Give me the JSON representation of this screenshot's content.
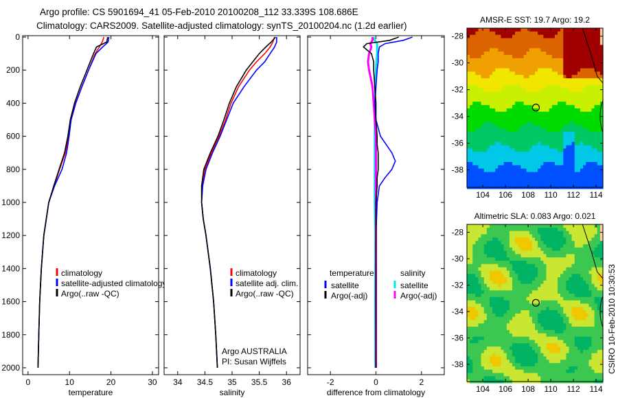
{
  "title_line1": "Argo profile: CS 5901694_41 05-Feb-2010 20100208_112 33.339S 108.686E",
  "title_line2": "Climatology: CARS2009. Satellite-adjusted climatology: synTS_20100204.nc (1.2d earlier)",
  "footer": "CSIRO 10-Feb-2010 10:30:53",
  "colors": {
    "climatology": "#ff0000",
    "satellite": "#0000ff",
    "argo": "#000000",
    "sal_satellite": "#00e5ee",
    "sal_argo": "#ff00ff"
  },
  "chart_data": [
    {
      "type": "line",
      "xlabel": "temperature",
      "ylabel": "",
      "xlim": [
        -1.3,
        31.5
      ],
      "ylim": [
        2050,
        0
      ],
      "xticks": [
        "0",
        "10",
        "20",
        "30"
      ],
      "yticks": [
        "0",
        "200",
        "400",
        "600",
        "800",
        "1000",
        "1200",
        "1400",
        "1600",
        "1800",
        "2000"
      ],
      "depth": [
        0,
        30,
        60,
        100,
        150,
        200,
        300,
        400,
        500,
        600,
        700,
        800,
        900,
        1000,
        1200,
        1400,
        1600,
        1800,
        2000
      ],
      "legend": [
        "climatology",
        "satellite-adjusted climatology",
        "Argo(..raw -QC)"
      ],
      "series": [
        {
          "name": "climatology",
          "color": "climatology",
          "values": [
            18.3,
            17.9,
            17.2,
            16.2,
            15.4,
            14.6,
            13.0,
            11.5,
            10.4,
            9.8,
            9.0,
            7.6,
            6.3,
            5.0,
            3.8,
            3.2,
            2.8,
            2.6,
            2.4
          ]
        },
        {
          "name": "satellite-adjusted climatology",
          "color": "satellite",
          "values": [
            19.5,
            19.3,
            18.0,
            16.4,
            15.5,
            14.6,
            13.0,
            11.5,
            10.4,
            9.9,
            9.3,
            8.2,
            6.4,
            5.0,
            3.8,
            3.2,
            2.8,
            2.6,
            2.4
          ]
        },
        {
          "name": "Argo(..raw -QC)",
          "color": "argo",
          "values": [
            19.2,
            19.0,
            16.5,
            15.8,
            15.0,
            14.2,
            12.6,
            11.2,
            10.2,
            9.6,
            8.8,
            7.5,
            6.2,
            5.0,
            3.8,
            3.2,
            2.8,
            2.6,
            2.4
          ]
        }
      ]
    },
    {
      "type": "line",
      "xlabel": "salinity",
      "xlim": [
        33.75,
        36.25
      ],
      "ylim": [
        2050,
        0
      ],
      "xticks": [
        "34",
        "34.5",
        "35",
        "35.5",
        "36"
      ],
      "depth": [
        0,
        30,
        60,
        100,
        150,
        200,
        300,
        400,
        500,
        600,
        700,
        800,
        900,
        1000,
        1100,
        1200,
        1400,
        1600,
        1800,
        2000
      ],
      "legend": [
        "climatology",
        "satellite adj. clim.",
        "Argo(..raw -QC)"
      ],
      "annotation": [
        "Argo AUSTRALIA",
        "PI: Susan Wijffels"
      ],
      "series": [
        {
          "name": "climatology",
          "color": "climatology",
          "values": [
            35.78,
            35.75,
            35.7,
            35.6,
            35.45,
            35.32,
            35.12,
            34.98,
            34.88,
            34.76,
            34.62,
            34.5,
            34.45,
            34.44,
            34.47,
            34.52,
            34.6,
            34.66,
            34.7,
            34.73
          ]
        },
        {
          "name": "satellite adj. clim.",
          "color": "satellite",
          "values": [
            35.82,
            35.82,
            35.78,
            35.7,
            35.6,
            35.45,
            35.22,
            35.02,
            34.9,
            34.78,
            34.64,
            34.52,
            34.46,
            34.44,
            34.47,
            34.52,
            34.6,
            34.66,
            34.7,
            34.73
          ]
        },
        {
          "name": "Argo(..raw -QC)",
          "color": "argo",
          "values": [
            35.8,
            35.72,
            35.62,
            35.5,
            35.38,
            35.26,
            35.08,
            34.95,
            34.85,
            34.74,
            34.6,
            34.48,
            34.44,
            34.44,
            34.47,
            34.52,
            34.6,
            34.66,
            34.7,
            34.73
          ]
        }
      ]
    },
    {
      "type": "line",
      "xlabel": "difference from climatology",
      "xlim": [
        -3,
        3
      ],
      "ylim": [
        2050,
        0
      ],
      "xticks": [
        "-2",
        "0",
        "2"
      ],
      "depth": [
        0,
        20,
        40,
        60,
        100,
        150,
        200,
        300,
        400,
        500,
        600,
        650,
        700,
        750,
        800,
        850,
        900,
        1000,
        1200,
        1600,
        2000
      ],
      "legend_headers": [
        "temperature",
        "salinity"
      ],
      "legend": [
        "satellite",
        "Argo(-adj)",
        "satellite",
        "Argo(-adj)"
      ],
      "series": [
        {
          "name": "temperature satellite",
          "color": "satellite",
          "values": [
            1.6,
            1.2,
            0.4,
            0.15,
            0.1,
            0.1,
            0.05,
            0.0,
            -0.05,
            0.0,
            0.2,
            0.45,
            0.7,
            0.85,
            0.7,
            0.4,
            0.15,
            0.05,
            0.0,
            0.0,
            0.0
          ]
        },
        {
          "name": "temperature Argo(-adj)",
          "color": "argo",
          "values": [
            1.0,
            0.6,
            -0.4,
            -0.55,
            -0.2,
            -0.1,
            -0.1,
            -0.05,
            0.0,
            0.0,
            0.05,
            0.05,
            0.1,
            0.1,
            0.1,
            0.05,
            0.05,
            0.0,
            0.0,
            0.0,
            0.0
          ]
        },
        {
          "name": "salinity satellite",
          "color": "sal_satellite",
          "values": [
            -0.1,
            -0.05,
            0.05,
            0.05,
            0.05,
            0.02,
            0.0,
            -0.02,
            -0.05,
            -0.05,
            -0.05,
            -0.05,
            -0.05,
            -0.05,
            -0.05,
            -0.05,
            -0.05,
            -0.05,
            -0.02,
            -0.03,
            -0.02
          ]
        },
        {
          "name": "salinity Argo(-adj)",
          "color": "sal_argo",
          "values": [
            -0.15,
            -0.15,
            -0.25,
            -0.2,
            -0.3,
            -0.35,
            -0.3,
            -0.15,
            -0.1,
            -0.05,
            0.0,
            0.0,
            0.0,
            0.0,
            0.0,
            0.0,
            0.0,
            0.0,
            0.0,
            0.0,
            0.0
          ]
        }
      ]
    },
    {
      "type": "heatmap",
      "title": "AMSR-E SST: 19.7 Argo: 19.2",
      "xlim": [
        102.6,
        114.6
      ],
      "ylim": [
        -39.3,
        -27.4
      ],
      "xticks": [
        "104",
        "106",
        "108",
        "110",
        "112",
        "114"
      ],
      "yticks": [
        "-28",
        "-30",
        "-32",
        "-34",
        "-36",
        "-38"
      ],
      "marker": {
        "lon": 108.686,
        "lat": -33.339
      }
    },
    {
      "type": "heatmap",
      "title": "Altimetric SLA: 0.083 Argo: 0.021",
      "xlim": [
        102.6,
        114.6
      ],
      "ylim": [
        -39.3,
        -27.4
      ],
      "xticks": [
        "104",
        "106",
        "108",
        "110",
        "112",
        "114"
      ],
      "yticks": [
        "-28",
        "-30",
        "-32",
        "-34",
        "-36",
        "-38"
      ],
      "marker": {
        "lon": 108.686,
        "lat": -33.339
      }
    }
  ]
}
